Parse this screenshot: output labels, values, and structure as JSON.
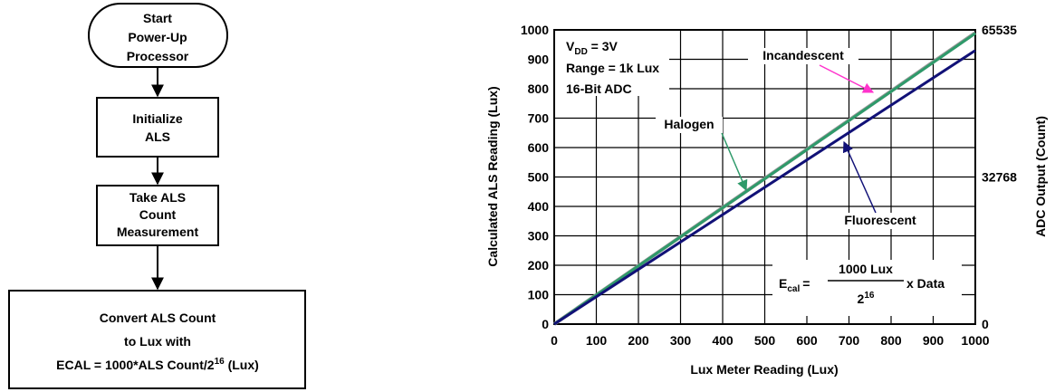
{
  "flowchart": {
    "start": [
      "Start",
      "Power-Up",
      "Processor"
    ],
    "init": [
      "Initialize",
      "ALS"
    ],
    "take": [
      "Take ALS",
      "Count",
      "Measurement"
    ],
    "convert": {
      "line1": "Convert ALS Count",
      "line2": "to Lux with",
      "line3_main": "ECAL = 1000*ALS Count/2",
      "line3_sup": "16",
      "line3_end": " (Lux)"
    }
  },
  "chart_data": {
    "type": "line",
    "xlabel": "Lux Meter Reading (Lux)",
    "ylabel": "Calculated ALS Reading (Lux)",
    "y2label": "ADC Output (Count)",
    "xlim": [
      0,
      1000
    ],
    "ylim": [
      0,
      1000
    ],
    "x_ticks": [
      "0",
      "100",
      "200",
      "300",
      "400",
      "500",
      "600",
      "700",
      "800",
      "900",
      "1000"
    ],
    "y_ticks": [
      "0",
      "100",
      "200",
      "300",
      "400",
      "500",
      "600",
      "700",
      "800",
      "900",
      "1000"
    ],
    "y2_ticks": [
      {
        "label": "65535",
        "y": 1000
      },
      {
        "label": "32768",
        "y": 500
      },
      {
        "label": "0",
        "y": 0
      }
    ],
    "grid": true,
    "series": [
      {
        "name": "Incandescent",
        "x": [
          0,
          1000
        ],
        "y": [
          0,
          990
        ],
        "color": "#999999"
      },
      {
        "name": "Halogen",
        "x": [
          0,
          1000
        ],
        "y": [
          0,
          988
        ],
        "color": "#2e9a6a"
      },
      {
        "name": "Fluorescent",
        "x": [
          0,
          1000
        ],
        "y": [
          0,
          930
        ],
        "color": "#111177"
      }
    ],
    "conditions": {
      "vdd_main": "V",
      "vdd_sub": "DD",
      "vdd_end": " = 3V",
      "range": "Range = 1k Lux",
      "adc": "16-Bit ADC"
    },
    "labels": {
      "incandescent": "Incandescent",
      "halogen": "Halogen",
      "fluorescent": "Fluorescent"
    },
    "formula": {
      "lhs_main": "E",
      "lhs_sub": "cal",
      "equals": "=",
      "numerator": "1000 Lux",
      "den_main": "2",
      "den_sup": "16",
      "rhs": "x Data"
    },
    "arrow_colors": {
      "incandescent": "#ff33cc",
      "halogen": "#2e9a6a",
      "fluorescent": "#111177"
    }
  }
}
